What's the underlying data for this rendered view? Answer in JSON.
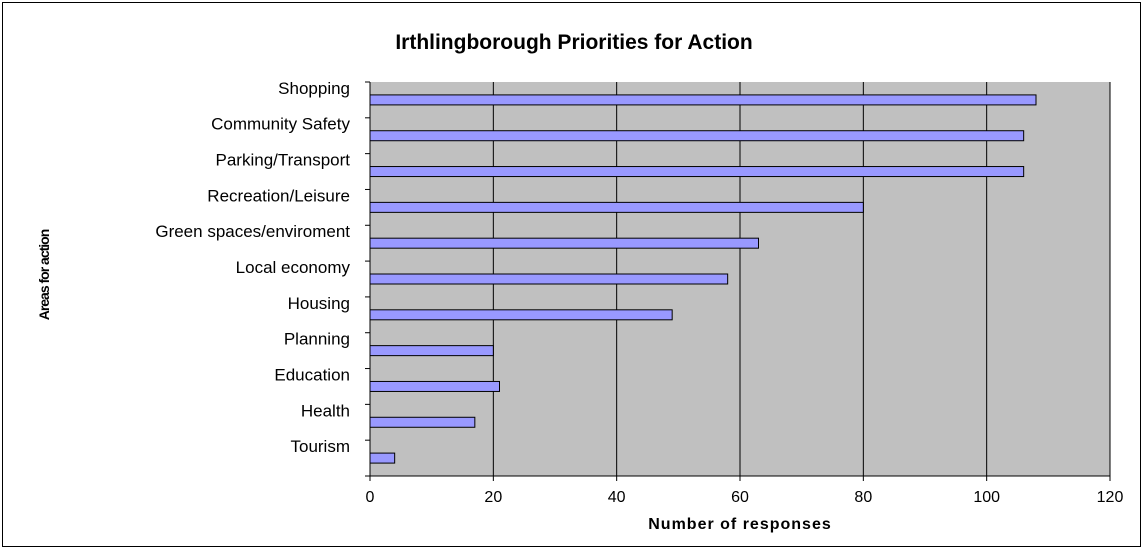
{
  "chart_data": {
    "type": "bar",
    "orientation": "horizontal",
    "title": "Irthlingborough Priorities for Action",
    "xlabel": "Number of responses",
    "ylabel": "Areas for action",
    "categories": [
      "Shopping",
      "Community Safety",
      "Parking/Transport",
      "Recreation/Leisure",
      "Green spaces/enviroment",
      "Local economy",
      "Housing",
      "Planning",
      "Education",
      "Health",
      "Tourism"
    ],
    "values": [
      108,
      106,
      106,
      80,
      63,
      58,
      49,
      20,
      21,
      17,
      4
    ],
    "xlim": [
      0,
      120
    ],
    "xticks": [
      "0",
      "20",
      "40",
      "60",
      "80",
      "100",
      "120"
    ],
    "grid": "vertical",
    "legend": "none",
    "colors": {
      "bar_fill": "#9999ff",
      "bar_stroke": "#000000",
      "plot_background": "#c0c0c0",
      "gridline": "#000000"
    }
  }
}
